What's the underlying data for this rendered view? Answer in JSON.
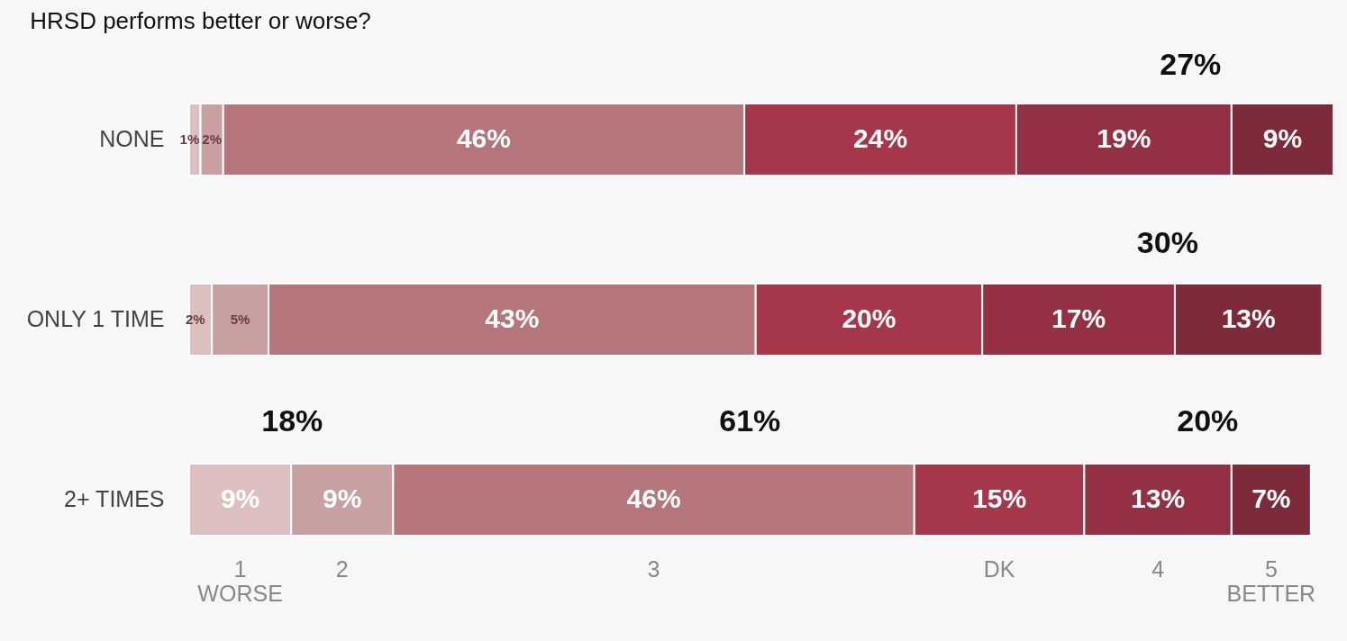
{
  "chart_data": {
    "type": "bar",
    "title": "HRSD performs better or worse?",
    "orientation": "horizontal",
    "stacked": true,
    "legend": "bottom",
    "categories": [
      "NONE",
      "ONLY 1 TIME",
      "2+ TIMES"
    ],
    "series": [
      {
        "name": "1 WORSE",
        "color": "#dcc0c0",
        "values": [
          1,
          2,
          9
        ],
        "value_labels": [
          "1%",
          "2%",
          "9%"
        ]
      },
      {
        "name": "2",
        "color": "#c9a0a2",
        "values": [
          2,
          5,
          9
        ],
        "value_labels": [
          "2%",
          "5%",
          "9%"
        ]
      },
      {
        "name": "3",
        "color": "#b5767b",
        "values": [
          46,
          43,
          46
        ],
        "value_labels": [
          "46%",
          "43%",
          "46%"
        ]
      },
      {
        "name": "DK",
        "color": "#a6364a",
        "values": [
          24,
          20,
          15
        ],
        "value_labels": [
          "24%",
          "20%",
          "15%"
        ]
      },
      {
        "name": "4",
        "color": "#933044",
        "values": [
          19,
          17,
          13
        ],
        "value_labels": [
          "19%",
          "17%",
          "13%"
        ]
      },
      {
        "name": "5 BETTER",
        "color": "#7d2b3a",
        "values": [
          9,
          13,
          7
        ],
        "value_labels": [
          "9%",
          "13%",
          "7%"
        ]
      }
    ],
    "annotations": [
      "27%",
      "30%",
      "18%",
      "61%",
      "20%"
    ]
  }
}
